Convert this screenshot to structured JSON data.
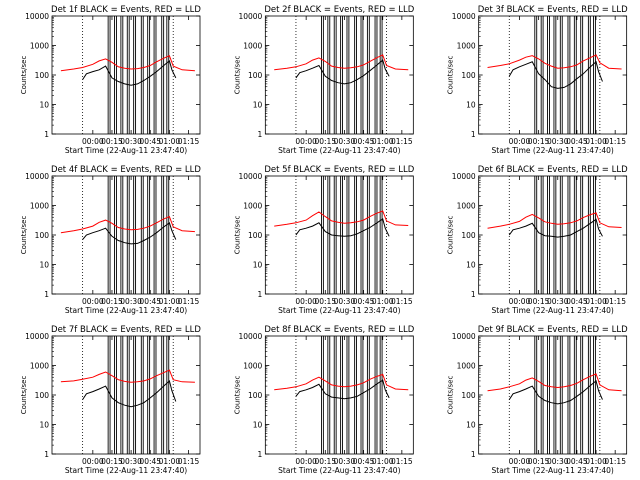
{
  "chart_data": [
    {
      "type": "line",
      "title": "Det 1f BLACK = Events, RED = LLD",
      "xlabel": "Start Time (22-Aug-11 23:47:40)",
      "ylabel": "Counts/sec",
      "yscale": "log",
      "ylim": [
        1,
        10000
      ],
      "ytick_labels": [
        "1",
        "10",
        "100",
        "1000",
        "10000"
      ],
      "xtick_labels": [
        "00:00",
        "00:15",
        "00:30",
        "00:45",
        "01:00",
        "01:15"
      ],
      "series": [
        {
          "name": "Events",
          "color": "#000000",
          "x_minutes": [
            -8,
            -5,
            0,
            5,
            10,
            15,
            20,
            25,
            30,
            35,
            40,
            45,
            50,
            55,
            60,
            62,
            65
          ],
          "y": [
            70,
            110,
            130,
            150,
            200,
            80,
            60,
            50,
            45,
            50,
            65,
            90,
            130,
            200,
            300,
            150,
            80
          ]
        },
        {
          "name": "LLD",
          "color": "#ff0000",
          "x_minutes": [
            -25,
            -15,
            -8,
            0,
            5,
            10,
            15,
            20,
            25,
            30,
            35,
            40,
            45,
            50,
            55,
            60,
            63,
            70,
            80
          ],
          "y": [
            140,
            160,
            180,
            230,
            300,
            350,
            270,
            190,
            170,
            160,
            165,
            180,
            210,
            280,
            360,
            450,
            200,
            150,
            140
          ]
        }
      ]
    },
    {
      "type": "line",
      "title": "Det 2f BLACK = Events, RED = LLD",
      "xlabel": "Start Time (22-Aug-11 23:47:40)",
      "ylabel": "Counts/sec",
      "yscale": "log",
      "ylim": [
        1,
        10000
      ],
      "ytick_labels": [
        "1",
        "10",
        "100",
        "1000",
        "10000"
      ],
      "xtick_labels": [
        "00:00",
        "00:15",
        "00:30",
        "00:45",
        "01:00",
        "01:15"
      ],
      "series": [
        {
          "name": "Events",
          "color": "#000000",
          "x_minutes": [
            -8,
            -5,
            0,
            5,
            10,
            15,
            20,
            25,
            30,
            35,
            40,
            45,
            50,
            55,
            60,
            62,
            65
          ],
          "y": [
            80,
            120,
            140,
            170,
            210,
            90,
            65,
            55,
            50,
            55,
            70,
            95,
            140,
            210,
            320,
            160,
            90
          ]
        },
        {
          "name": "LLD",
          "color": "#ff0000",
          "x_minutes": [
            -25,
            -15,
            -8,
            0,
            5,
            10,
            15,
            20,
            25,
            30,
            35,
            40,
            45,
            50,
            55,
            60,
            63,
            70,
            80
          ],
          "y": [
            150,
            170,
            190,
            240,
            320,
            380,
            290,
            200,
            180,
            170,
            175,
            190,
            220,
            290,
            380,
            480,
            210,
            160,
            150
          ]
        }
      ]
    },
    {
      "type": "line",
      "title": "Det 3f BLACK = Events, RED = LLD",
      "xlabel": "Start Time (22-Aug-11 23:47:40)",
      "ylabel": "Counts/sec",
      "yscale": "log",
      "ylim": [
        1,
        10000
      ],
      "ytick_labels": [
        "1",
        "10",
        "100",
        "1000",
        "10000"
      ],
      "xtick_labels": [
        "00:00",
        "00:15",
        "00:30",
        "00:45",
        "01:00",
        "01:15"
      ],
      "series": [
        {
          "name": "Events",
          "color": "#000000",
          "x_minutes": [
            -8,
            -5,
            0,
            5,
            10,
            15,
            20,
            25,
            30,
            35,
            40,
            45,
            50,
            55,
            60,
            62,
            65
          ],
          "y": [
            90,
            150,
            190,
            230,
            280,
            110,
            70,
            40,
            35,
            38,
            50,
            75,
            110,
            180,
            280,
            130,
            60
          ]
        },
        {
          "name": "LLD",
          "color": "#ff0000",
          "x_minutes": [
            -25,
            -15,
            -8,
            0,
            5,
            10,
            15,
            20,
            25,
            30,
            35,
            40,
            45,
            50,
            55,
            60,
            63,
            70,
            80
          ],
          "y": [
            180,
            210,
            240,
            320,
            400,
            450,
            350,
            250,
            200,
            170,
            175,
            190,
            220,
            300,
            380,
            480,
            260,
            170,
            160
          ]
        }
      ]
    },
    {
      "type": "line",
      "title": "Det 4f BLACK = Events, RED = LLD",
      "xlabel": "Start Time (22-Aug-11 23:47:40)",
      "ylabel": "Counts/sec",
      "yscale": "log",
      "ylim": [
        1,
        10000
      ],
      "ytick_labels": [
        "1",
        "10",
        "100",
        "1000",
        "10000"
      ],
      "xtick_labels": [
        "00:00",
        "00:15",
        "00:30",
        "00:45",
        "01:00",
        "01:15"
      ],
      "series": [
        {
          "name": "Events",
          "color": "#000000",
          "x_minutes": [
            -8,
            -5,
            0,
            5,
            10,
            15,
            20,
            25,
            30,
            35,
            40,
            45,
            50,
            55,
            60,
            62,
            65
          ],
          "y": [
            70,
            100,
            120,
            140,
            170,
            90,
            65,
            55,
            50,
            52,
            65,
            85,
            120,
            180,
            260,
            140,
            70
          ]
        },
        {
          "name": "LLD",
          "color": "#ff0000",
          "x_minutes": [
            -25,
            -15,
            -8,
            0,
            5,
            10,
            15,
            20,
            25,
            30,
            35,
            40,
            45,
            50,
            55,
            60,
            63,
            70,
            80
          ],
          "y": [
            120,
            140,
            160,
            200,
            270,
            320,
            250,
            180,
            160,
            150,
            155,
            170,
            200,
            260,
            340,
            420,
            190,
            140,
            130
          ]
        }
      ]
    },
    {
      "type": "line",
      "title": "Det 5f BLACK = Events, RED = LLD",
      "xlabel": "Start Time (22-Aug-11 23:47:40)",
      "ylabel": "Counts/sec",
      "yscale": "log",
      "ylim": [
        1,
        10000
      ],
      "ytick_labels": [
        "1",
        "10",
        "100",
        "1000",
        "10000"
      ],
      "xtick_labels": [
        "00:00",
        "00:15",
        "00:30",
        "00:45",
        "01:00",
        "01:15"
      ],
      "series": [
        {
          "name": "Events",
          "color": "#000000",
          "x_minutes": [
            -8,
            -5,
            0,
            5,
            10,
            15,
            20,
            25,
            30,
            35,
            40,
            45,
            50,
            55,
            60,
            62,
            65
          ],
          "y": [
            100,
            150,
            170,
            200,
            260,
            130,
            100,
            95,
            90,
            95,
            110,
            140,
            180,
            250,
            350,
            170,
            90
          ]
        },
        {
          "name": "LLD",
          "color": "#ff0000",
          "x_minutes": [
            -25,
            -15,
            -8,
            0,
            5,
            10,
            15,
            20,
            25,
            30,
            35,
            40,
            45,
            50,
            55,
            60,
            63,
            70,
            80
          ],
          "y": [
            200,
            230,
            260,
            320,
            450,
            600,
            420,
            300,
            270,
            250,
            260,
            280,
            320,
            420,
            540,
            650,
            300,
            220,
            210
          ]
        }
      ]
    },
    {
      "type": "line",
      "title": "Det 6f BLACK = Events, RED = LLD",
      "xlabel": "Start Time (22-Aug-11 23:47:40)",
      "ylabel": "Counts/sec",
      "yscale": "log",
      "ylim": [
        1,
        10000
      ],
      "ytick_labels": [
        "1",
        "10",
        "100",
        "1000",
        "10000"
      ],
      "xtick_labels": [
        "00:00",
        "00:15",
        "00:30",
        "00:45",
        "01:00",
        "01:15"
      ],
      "series": [
        {
          "name": "Events",
          "color": "#000000",
          "x_minutes": [
            -8,
            -5,
            0,
            5,
            10,
            15,
            20,
            25,
            30,
            35,
            40,
            45,
            50,
            55,
            60,
            62,
            65
          ],
          "y": [
            100,
            150,
            170,
            200,
            250,
            120,
            95,
            90,
            85,
            90,
            100,
            130,
            170,
            240,
            340,
            160,
            90
          ]
        },
        {
          "name": "LLD",
          "color": "#ff0000",
          "x_minutes": [
            -25,
            -15,
            -8,
            0,
            5,
            10,
            15,
            20,
            25,
            30,
            35,
            40,
            45,
            50,
            55,
            60,
            63,
            70,
            80
          ],
          "y": [
            170,
            200,
            230,
            290,
            400,
            500,
            380,
            280,
            250,
            230,
            240,
            260,
            300,
            390,
            480,
            560,
            260,
            190,
            180
          ]
        }
      ]
    },
    {
      "type": "line",
      "title": "Det 7f BLACK = Events, RED = LLD",
      "xlabel": "Start Time (22-Aug-11 23:47:40)",
      "ylabel": "Counts/sec",
      "yscale": "log",
      "ylim": [
        1,
        10000
      ],
      "ytick_labels": [
        "1",
        "10",
        "100",
        "1000",
        "10000"
      ],
      "xtick_labels": [
        "00:00",
        "00:15",
        "00:30",
        "00:45",
        "01:00",
        "01:15"
      ],
      "series": [
        {
          "name": "Events",
          "color": "#000000",
          "x_minutes": [
            -8,
            -5,
            0,
            5,
            10,
            15,
            20,
            25,
            30,
            35,
            40,
            45,
            50,
            55,
            60,
            62,
            65
          ],
          "y": [
            70,
            110,
            130,
            160,
            200,
            80,
            55,
            45,
            40,
            45,
            55,
            80,
            120,
            190,
            300,
            140,
            60
          ]
        },
        {
          "name": "LLD",
          "color": "#ff0000",
          "x_minutes": [
            -25,
            -15,
            -8,
            0,
            5,
            10,
            15,
            20,
            25,
            30,
            35,
            40,
            45,
            50,
            55,
            60,
            63,
            70,
            80
          ],
          "y": [
            280,
            300,
            340,
            400,
            500,
            600,
            450,
            330,
            290,
            270,
            280,
            300,
            350,
            450,
            560,
            700,
            330,
            280,
            270
          ]
        }
      ]
    },
    {
      "type": "line",
      "title": "Det 8f BLACK = Events, RED = LLD",
      "xlabel": "Start Time (22-Aug-11 23:47:40)",
      "ylabel": "Counts/sec",
      "yscale": "log",
      "ylim": [
        1,
        10000
      ],
      "ytick_labels": [
        "1",
        "10",
        "100",
        "1000",
        "10000"
      ],
      "xtick_labels": [
        "00:00",
        "00:15",
        "00:30",
        "00:45",
        "01:00",
        "01:15"
      ],
      "series": [
        {
          "name": "Events",
          "color": "#000000",
          "x_minutes": [
            -8,
            -5,
            0,
            5,
            10,
            15,
            20,
            25,
            30,
            35,
            40,
            45,
            50,
            55,
            60,
            62,
            65
          ],
          "y": [
            90,
            130,
            150,
            180,
            230,
            110,
            85,
            80,
            75,
            80,
            90,
            120,
            160,
            230,
            320,
            150,
            80
          ]
        },
        {
          "name": "LLD",
          "color": "#ff0000",
          "x_minutes": [
            -25,
            -15,
            -8,
            0,
            5,
            10,
            15,
            20,
            25,
            30,
            35,
            40,
            45,
            50,
            55,
            60,
            63,
            70,
            80
          ],
          "y": [
            150,
            170,
            190,
            240,
            320,
            400,
            300,
            220,
            200,
            190,
            200,
            220,
            260,
            340,
            420,
            500,
            220,
            160,
            150
          ]
        }
      ]
    },
    {
      "type": "line",
      "title": "Det 9f BLACK = Events, RED = LLD",
      "xlabel": "Start Time (22-Aug-11 23:47:40)",
      "ylabel": "Counts/sec",
      "yscale": "log",
      "ylim": [
        1,
        10000
      ],
      "ytick_labels": [
        "1",
        "10",
        "100",
        "1000",
        "10000"
      ],
      "xtick_labels": [
        "00:00",
        "00:15",
        "00:30",
        "00:45",
        "01:00",
        "01:15"
      ],
      "series": [
        {
          "name": "Events",
          "color": "#000000",
          "x_minutes": [
            -8,
            -5,
            0,
            5,
            10,
            15,
            20,
            25,
            30,
            35,
            40,
            45,
            50,
            55,
            60,
            62,
            65
          ],
          "y": [
            70,
            110,
            130,
            160,
            200,
            90,
            65,
            55,
            50,
            55,
            65,
            90,
            130,
            200,
            300,
            140,
            70
          ]
        },
        {
          "name": "LLD",
          "color": "#ff0000",
          "x_minutes": [
            -25,
            -15,
            -8,
            0,
            5,
            10,
            15,
            20,
            25,
            30,
            35,
            40,
            45,
            50,
            55,
            60,
            63,
            70,
            80
          ],
          "y": [
            140,
            160,
            190,
            240,
            320,
            380,
            290,
            210,
            190,
            180,
            190,
            210,
            250,
            330,
            420,
            520,
            220,
            150,
            140
          ]
        }
      ]
    }
  ]
}
